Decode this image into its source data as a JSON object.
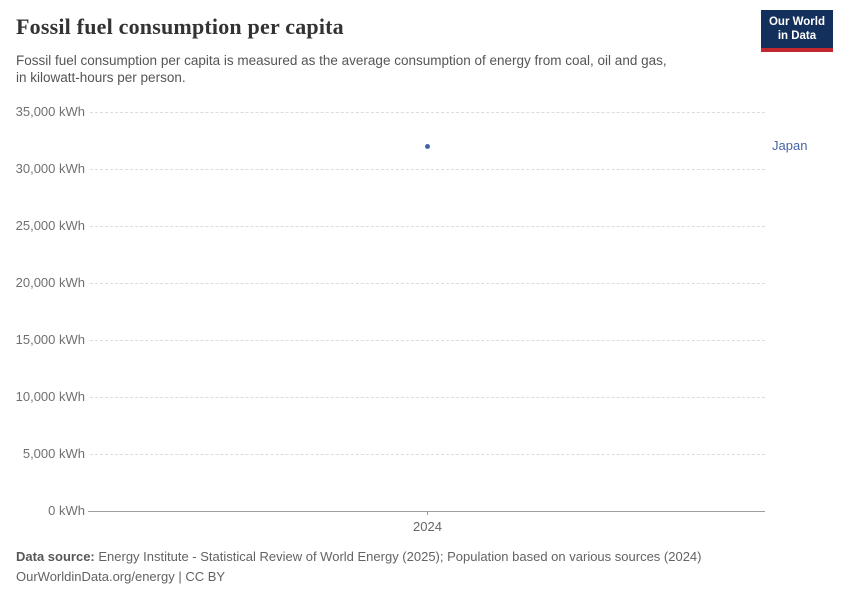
{
  "header": {
    "title": "Fossil fuel consumption per capita",
    "subtitle_lines": [
      "Fossil fuel consumption per capita is measured as the average consumption of energy from coal, oil and gas,",
      "in kilowatt-hours per person."
    ],
    "logo": {
      "line1": "Our World",
      "line2": "in Data",
      "bg_color": "#12305b",
      "accent_color": "#c0282d"
    }
  },
  "chart_data": {
    "type": "scatter",
    "title": "Fossil fuel consumption per capita",
    "xlabel": "",
    "ylabel": "kWh",
    "ylim": [
      0,
      35000
    ],
    "ytick_interval": 5000,
    "ytick_labels": [
      "0 kWh",
      "5,000 kWh",
      "10,000 kWh",
      "15,000 kWh",
      "20,000 kWh",
      "25,000 kWh",
      "30,000 kWh",
      "35,000 kWh"
    ],
    "xticks": [
      {
        "value": 2024,
        "label": "2024"
      }
    ],
    "grid": "horizontal-dashed",
    "legend_position": "right-of-point",
    "series": [
      {
        "name": "Japan",
        "color": "#4665a6",
        "points": [
          {
            "x": 2024,
            "y": 32000
          }
        ]
      }
    ]
  },
  "footer": {
    "data_source_label": "Data source:",
    "data_source_value": " Energy Institute - Statistical Review of World Energy (2025); Population based on various sources (2024)",
    "link_line": "OurWorldinData.org/energy | CC BY"
  }
}
